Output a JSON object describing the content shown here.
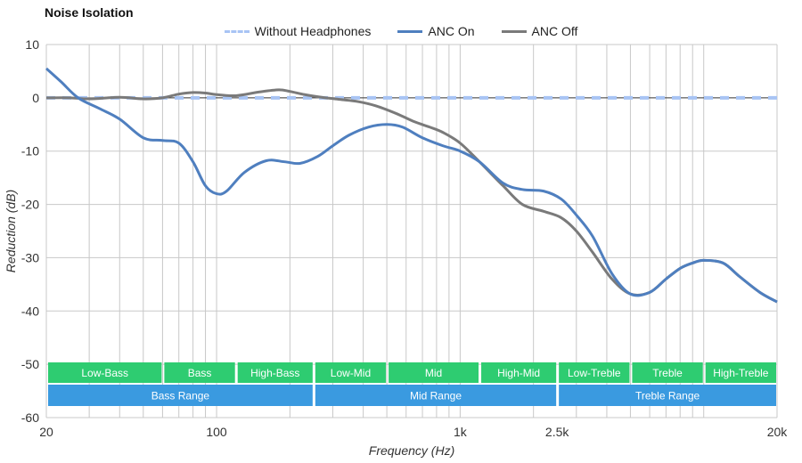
{
  "chart_data": {
    "type": "line",
    "title": "Noise Isolation",
    "xlabel": "Frequency (Hz)",
    "ylabel": "Reduction (dB)",
    "xscale": "log",
    "xlim": [
      20,
      20000
    ],
    "ylim": [
      -60,
      10
    ],
    "yticks": [
      10,
      0,
      -10,
      -20,
      -30,
      -40,
      -50,
      -60
    ],
    "xticks": [
      {
        "value": 20,
        "label": "20"
      },
      {
        "value": 100,
        "label": "100"
      },
      {
        "value": 1000,
        "label": "1k"
      },
      {
        "value": 2500,
        "label": "2.5k"
      },
      {
        "value": 20000,
        "label": "20k"
      }
    ],
    "legend_position": "top-center",
    "series": [
      {
        "name": "Without Headphones",
        "color": "#a8c4f4",
        "style": "dashed",
        "x": [
          20,
          20000
        ],
        "values": [
          0,
          0
        ]
      },
      {
        "name": "ANC On",
        "color": "#4f7fbf",
        "style": "solid",
        "x": [
          20,
          23,
          27,
          33,
          40,
          50,
          60,
          70,
          80,
          90,
          100,
          110,
          130,
          160,
          190,
          220,
          260,
          300,
          350,
          420,
          500,
          580,
          700,
          850,
          1000,
          1200,
          1500,
          1800,
          2200,
          2600,
          3000,
          3500,
          4200,
          5000,
          6000,
          7000,
          8000,
          9000,
          10000,
          12000,
          14000,
          17000,
          20000
        ],
        "values": [
          5.5,
          3,
          0,
          -2,
          -4,
          -7.5,
          -8,
          -8.5,
          -12,
          -16.5,
          -18,
          -17.5,
          -14,
          -11.8,
          -12,
          -12.3,
          -11,
          -9,
          -7,
          -5.5,
          -5,
          -5.5,
          -7.5,
          -9,
          -10,
          -12,
          -16,
          -17.2,
          -17.5,
          -19,
          -22,
          -26,
          -33,
          -36.8,
          -36.5,
          -34,
          -32,
          -31,
          -30.5,
          -31,
          -33.5,
          -36.5,
          -38.3
        ]
      },
      {
        "name": "ANC Off",
        "color": "#7a7a7a",
        "style": "solid",
        "x": [
          20,
          25,
          30,
          40,
          50,
          60,
          70,
          80,
          90,
          100,
          120,
          150,
          180,
          200,
          230,
          270,
          320,
          380,
          450,
          550,
          650,
          750,
          850,
          1000,
          1200,
          1500,
          1800,
          2200,
          2600,
          3000,
          3500,
          4200,
          5000,
          6000,
          7000,
          8000,
          9000,
          10000,
          12000,
          14000,
          17000,
          20000
        ],
        "values": [
          0,
          0,
          -0.2,
          0.1,
          -0.2,
          0,
          0.7,
          1,
          0.9,
          0.6,
          0.4,
          1.1,
          1.5,
          1.2,
          0.6,
          0.1,
          -0.3,
          -0.7,
          -1.5,
          -3,
          -4.5,
          -5.5,
          -6.5,
          -8.5,
          -12,
          -16.5,
          -20,
          -21.3,
          -22.5,
          -25,
          -29,
          -34,
          -36.8,
          -36.5,
          -34,
          -32,
          -31,
          -30.5,
          -31,
          -33.5,
          -36.5,
          -38.3
        ]
      }
    ],
    "range_bands": [
      {
        "label": "Low-Bass",
        "from": 20,
        "to": 60,
        "color": "#2ecc71"
      },
      {
        "label": "Bass",
        "from": 60,
        "to": 120,
        "color": "#2ecc71"
      },
      {
        "label": "High-Bass",
        "from": 120,
        "to": 250,
        "color": "#2ecc71"
      },
      {
        "label": "Low-Mid",
        "from": 250,
        "to": 500,
        "color": "#2ecc71"
      },
      {
        "label": "Mid",
        "from": 500,
        "to": 1200,
        "color": "#2ecc71"
      },
      {
        "label": "High-Mid",
        "from": 1200,
        "to": 2500,
        "color": "#2ecc71"
      },
      {
        "label": "Low-Treble",
        "from": 2500,
        "to": 5000,
        "color": "#2ecc71"
      },
      {
        "label": "Treble",
        "from": 5000,
        "to": 10000,
        "color": "#2ecc71"
      },
      {
        "label": "High-Treble",
        "from": 10000,
        "to": 20000,
        "color": "#2ecc71"
      }
    ],
    "range_groups": [
      {
        "label": "Bass Range",
        "from": 20,
        "to": 250,
        "color": "#3a9ae0"
      },
      {
        "label": "Mid Range",
        "from": 250,
        "to": 2500,
        "color": "#3a9ae0"
      },
      {
        "label": "Treble Range",
        "from": 2500,
        "to": 20000,
        "color": "#3a9ae0"
      }
    ]
  }
}
